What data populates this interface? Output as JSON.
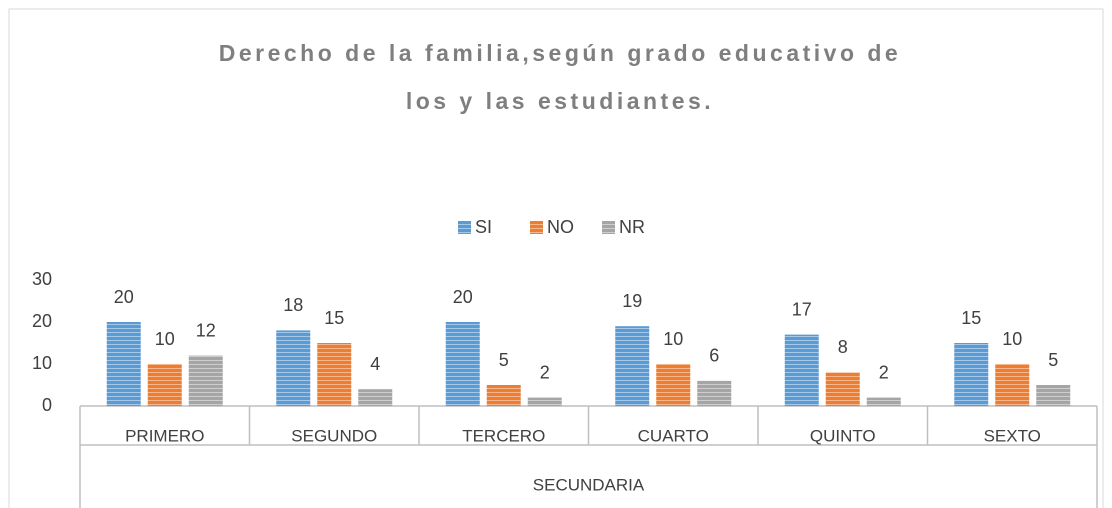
{
  "chart_data": {
    "type": "bar",
    "title": [
      "Derecho de la familia,según grado educativo de",
      "los y las estudiantes."
    ],
    "categories": [
      "PRIMERO",
      "SEGUNDO",
      "TERCERO",
      "CUARTO",
      "QUINTO",
      "SEXTO"
    ],
    "group_label": "SECUNDARIA",
    "series": [
      {
        "name": "SI",
        "color": "#5b9bd5",
        "values": [
          20,
          18,
          20,
          19,
          17,
          15
        ]
      },
      {
        "name": "NO",
        "color": "#ed7d31",
        "values": [
          10,
          15,
          5,
          10,
          8,
          10
        ]
      },
      {
        "name": "NR",
        "color": "#a5a5a5",
        "values": [
          12,
          4,
          2,
          6,
          2,
          5
        ]
      }
    ],
    "ylim": [
      0,
      30
    ],
    "yticks": [
      0,
      10,
      20,
      30
    ],
    "grid": false,
    "legend": "top"
  }
}
